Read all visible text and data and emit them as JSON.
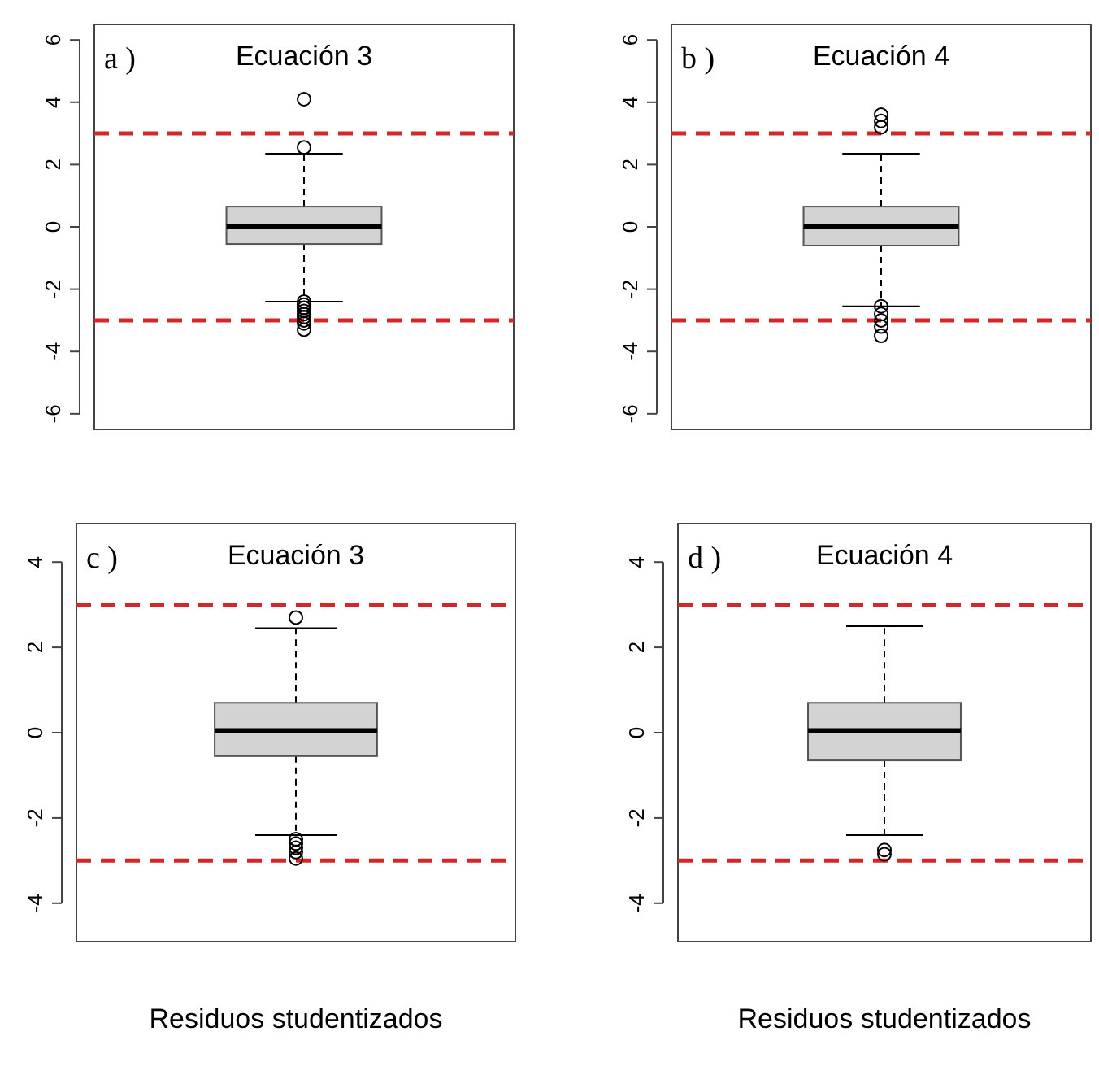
{
  "chart_data": [
    {
      "type": "box",
      "title": "Ecuación 3",
      "annotations": [
        "a )"
      ],
      "categories": [
        null
      ],
      "color": "#d3d3d3",
      "boxes": [
        {
          "low": -2.4,
          "q1": -0.55,
          "median": 0,
          "q3": 0.65,
          "high": 2.35,
          "outliers": [
            4.1,
            2.55,
            -2.4,
            -2.5,
            -2.6,
            -2.7,
            -2.8,
            -2.9,
            -3.0,
            -3.1,
            -3.3
          ]
        }
      ],
      "ylim": [
        -6.5,
        6.5
      ],
      "yticks": [
        -6,
        -4,
        -2,
        0,
        2,
        4,
        6
      ],
      "ref_lines": [
        {
          "axis": "y",
          "value": 3,
          "color": "#d62728",
          "line_style": "dashed"
        },
        {
          "axis": "y",
          "value": -3,
          "color": "#d62728",
          "line_style": "dashed"
        }
      ]
    },
    {
      "type": "box",
      "title": "Ecuación 4",
      "annotations": [
        "b )"
      ],
      "categories": [
        null
      ],
      "color": "#d3d3d3",
      "boxes": [
        {
          "low": -2.55,
          "q1": -0.6,
          "median": 0,
          "q3": 0.65,
          "high": 2.35,
          "outliers": [
            3.6,
            3.4,
            3.2,
            -2.55,
            -2.8,
            -3.0,
            -3.2,
            -3.5
          ]
        }
      ],
      "ylim": [
        -6.5,
        6.5
      ],
      "yticks": [
        -6,
        -4,
        -2,
        0,
        2,
        4,
        6
      ],
      "ref_lines": [
        {
          "axis": "y",
          "value": 3,
          "color": "#d62728",
          "line_style": "dashed"
        },
        {
          "axis": "y",
          "value": -3,
          "color": "#d62728",
          "line_style": "dashed"
        }
      ]
    },
    {
      "type": "box",
      "title": "Ecuación 3",
      "annotations": [
        "c )"
      ],
      "xlabel": "Residuos studentizados",
      "categories": [
        null
      ],
      "color": "#d3d3d3",
      "boxes": [
        {
          "low": -2.4,
          "q1": -0.55,
          "median": 0.05,
          "q3": 0.7,
          "high": 2.45,
          "outliers": [
            2.7,
            -2.5,
            -2.6,
            -2.7,
            -2.8,
            -2.95
          ]
        }
      ],
      "ylim": [
        -4.9,
        4.9
      ],
      "yticks": [
        -4,
        -2,
        0,
        2,
        4
      ],
      "ref_lines": [
        {
          "axis": "y",
          "value": 3,
          "color": "#d62728",
          "line_style": "dashed"
        },
        {
          "axis": "y",
          "value": -3,
          "color": "#d62728",
          "line_style": "dashed"
        }
      ]
    },
    {
      "type": "box",
      "title": "Ecuación 4",
      "annotations": [
        "d )"
      ],
      "xlabel": "Residuos studentizados",
      "categories": [
        null
      ],
      "color": "#d3d3d3",
      "boxes": [
        {
          "low": -2.4,
          "q1": -0.65,
          "median": 0.05,
          "q3": 0.7,
          "high": 2.5,
          "outliers": [
            -2.75,
            -2.85
          ]
        }
      ],
      "ylim": [
        -4.9,
        4.9
      ],
      "yticks": [
        -4,
        -2,
        0,
        2,
        4
      ],
      "ref_lines": [
        {
          "axis": "y",
          "value": 3,
          "color": "#d62728",
          "line_style": "dashed"
        },
        {
          "axis": "y",
          "value": -3,
          "color": "#d62728",
          "line_style": "dashed"
        }
      ]
    }
  ]
}
